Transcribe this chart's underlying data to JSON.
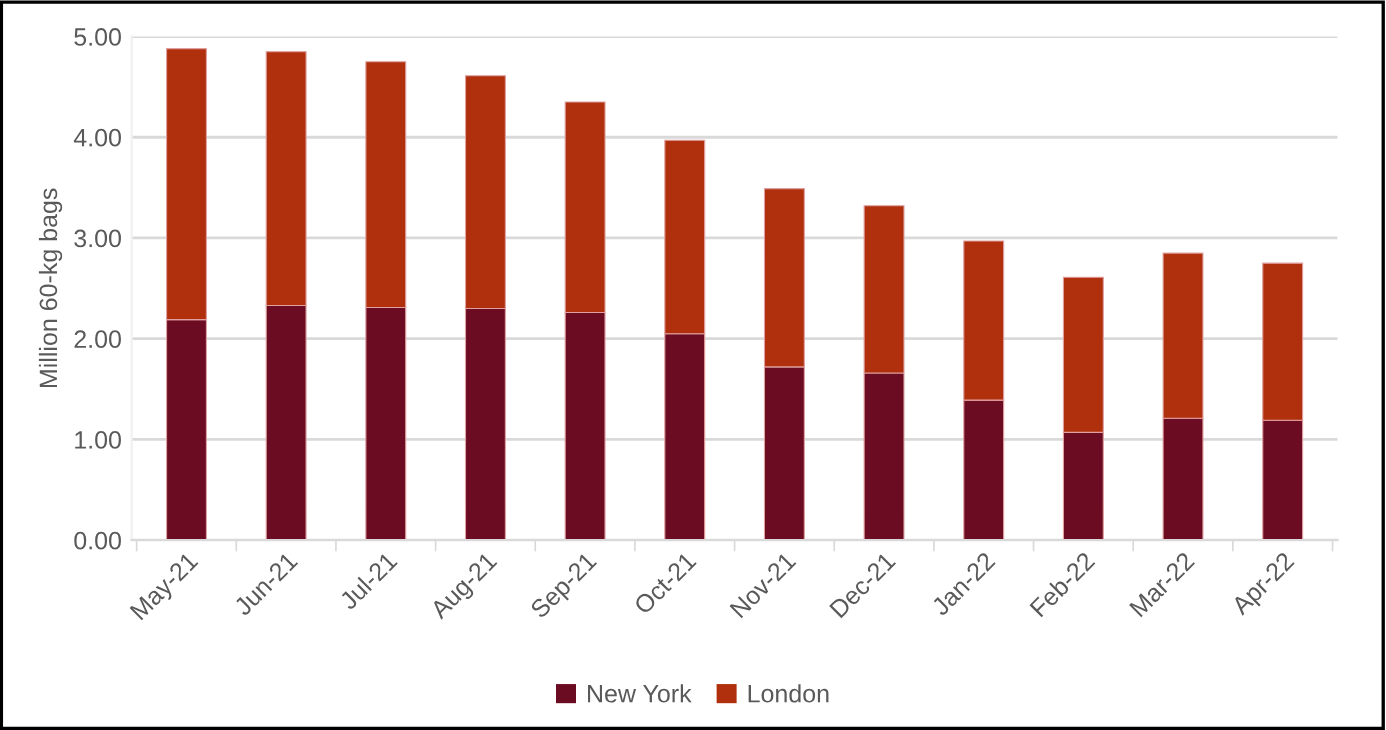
{
  "chart_data": {
    "type": "bar",
    "stacked": true,
    "ylabel": "Million 60-kg bags",
    "categories": [
      "May-21",
      "Jun-21",
      "Jul-21",
      "Aug-21",
      "Sep-21",
      "Oct-21",
      "Nov-21",
      "Dec-21",
      "Jan-22",
      "Feb-22",
      "Mar-22",
      "Apr-22"
    ],
    "series": [
      {
        "name": "New York",
        "color": "#6b0c22",
        "values": [
          2.19,
          2.33,
          2.31,
          2.3,
          2.26,
          2.05,
          1.72,
          1.66,
          1.39,
          1.07,
          1.21,
          1.19
        ]
      },
      {
        "name": "London",
        "color": "#b0300d",
        "values": [
          2.69,
          2.52,
          2.44,
          2.31,
          2.09,
          1.92,
          1.77,
          1.66,
          1.58,
          1.54,
          1.64,
          1.56
        ]
      }
    ],
    "ylim": [
      0,
      5
    ],
    "yticks": [
      {
        "value": 0,
        "label": "0.00"
      },
      {
        "value": 1,
        "label": "1.00"
      },
      {
        "value": 2,
        "label": "2.00"
      },
      {
        "value": 3,
        "label": "3.00"
      },
      {
        "value": 4,
        "label": "4.00"
      },
      {
        "value": 5,
        "label": "5.00"
      }
    ],
    "grid": "y",
    "legend": "bottom"
  }
}
